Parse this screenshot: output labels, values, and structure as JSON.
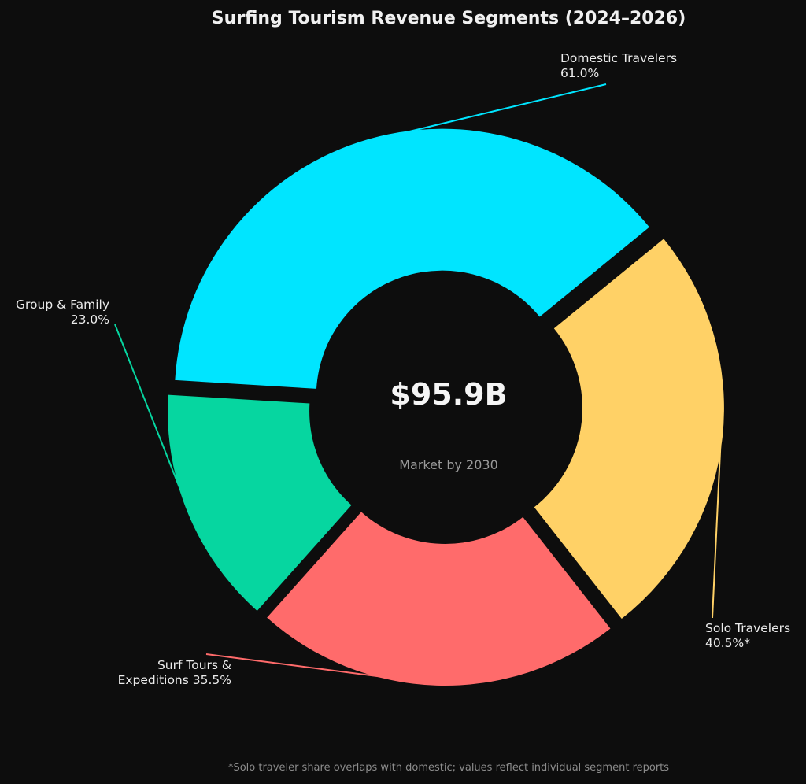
{
  "chart_data": {
    "type": "pie",
    "title": "Surfing Tourism Revenue Segments  (2024–2026)",
    "center_value": "$95.9B",
    "center_label": "Market by 2030",
    "footnote": "*Solo traveler share overlaps with domestic; values reflect individual segment reports",
    "slices": [
      {
        "name": "Domestic Travelers",
        "value": 61.0,
        "label_lines": [
          "Domestic Travelers",
          "61.0%"
        ],
        "color": "#00e5ff"
      },
      {
        "name": "Solo Travelers",
        "value": 40.5,
        "label_lines": [
          "Solo Travelers",
          "40.5%*"
        ],
        "color": "#ffd166"
      },
      {
        "name": "Surf Tours & Expeditions",
        "value": 35.5,
        "label_lines": [
          "Surf Tours &",
          "Expeditions 35.5%"
        ],
        "color": "#ff6b6b"
      },
      {
        "name": "Group & Family",
        "value": 23.0,
        "label_lines": [
          "Group & Family",
          "23.0%"
        ],
        "color": "#06d6a0"
      }
    ]
  }
}
